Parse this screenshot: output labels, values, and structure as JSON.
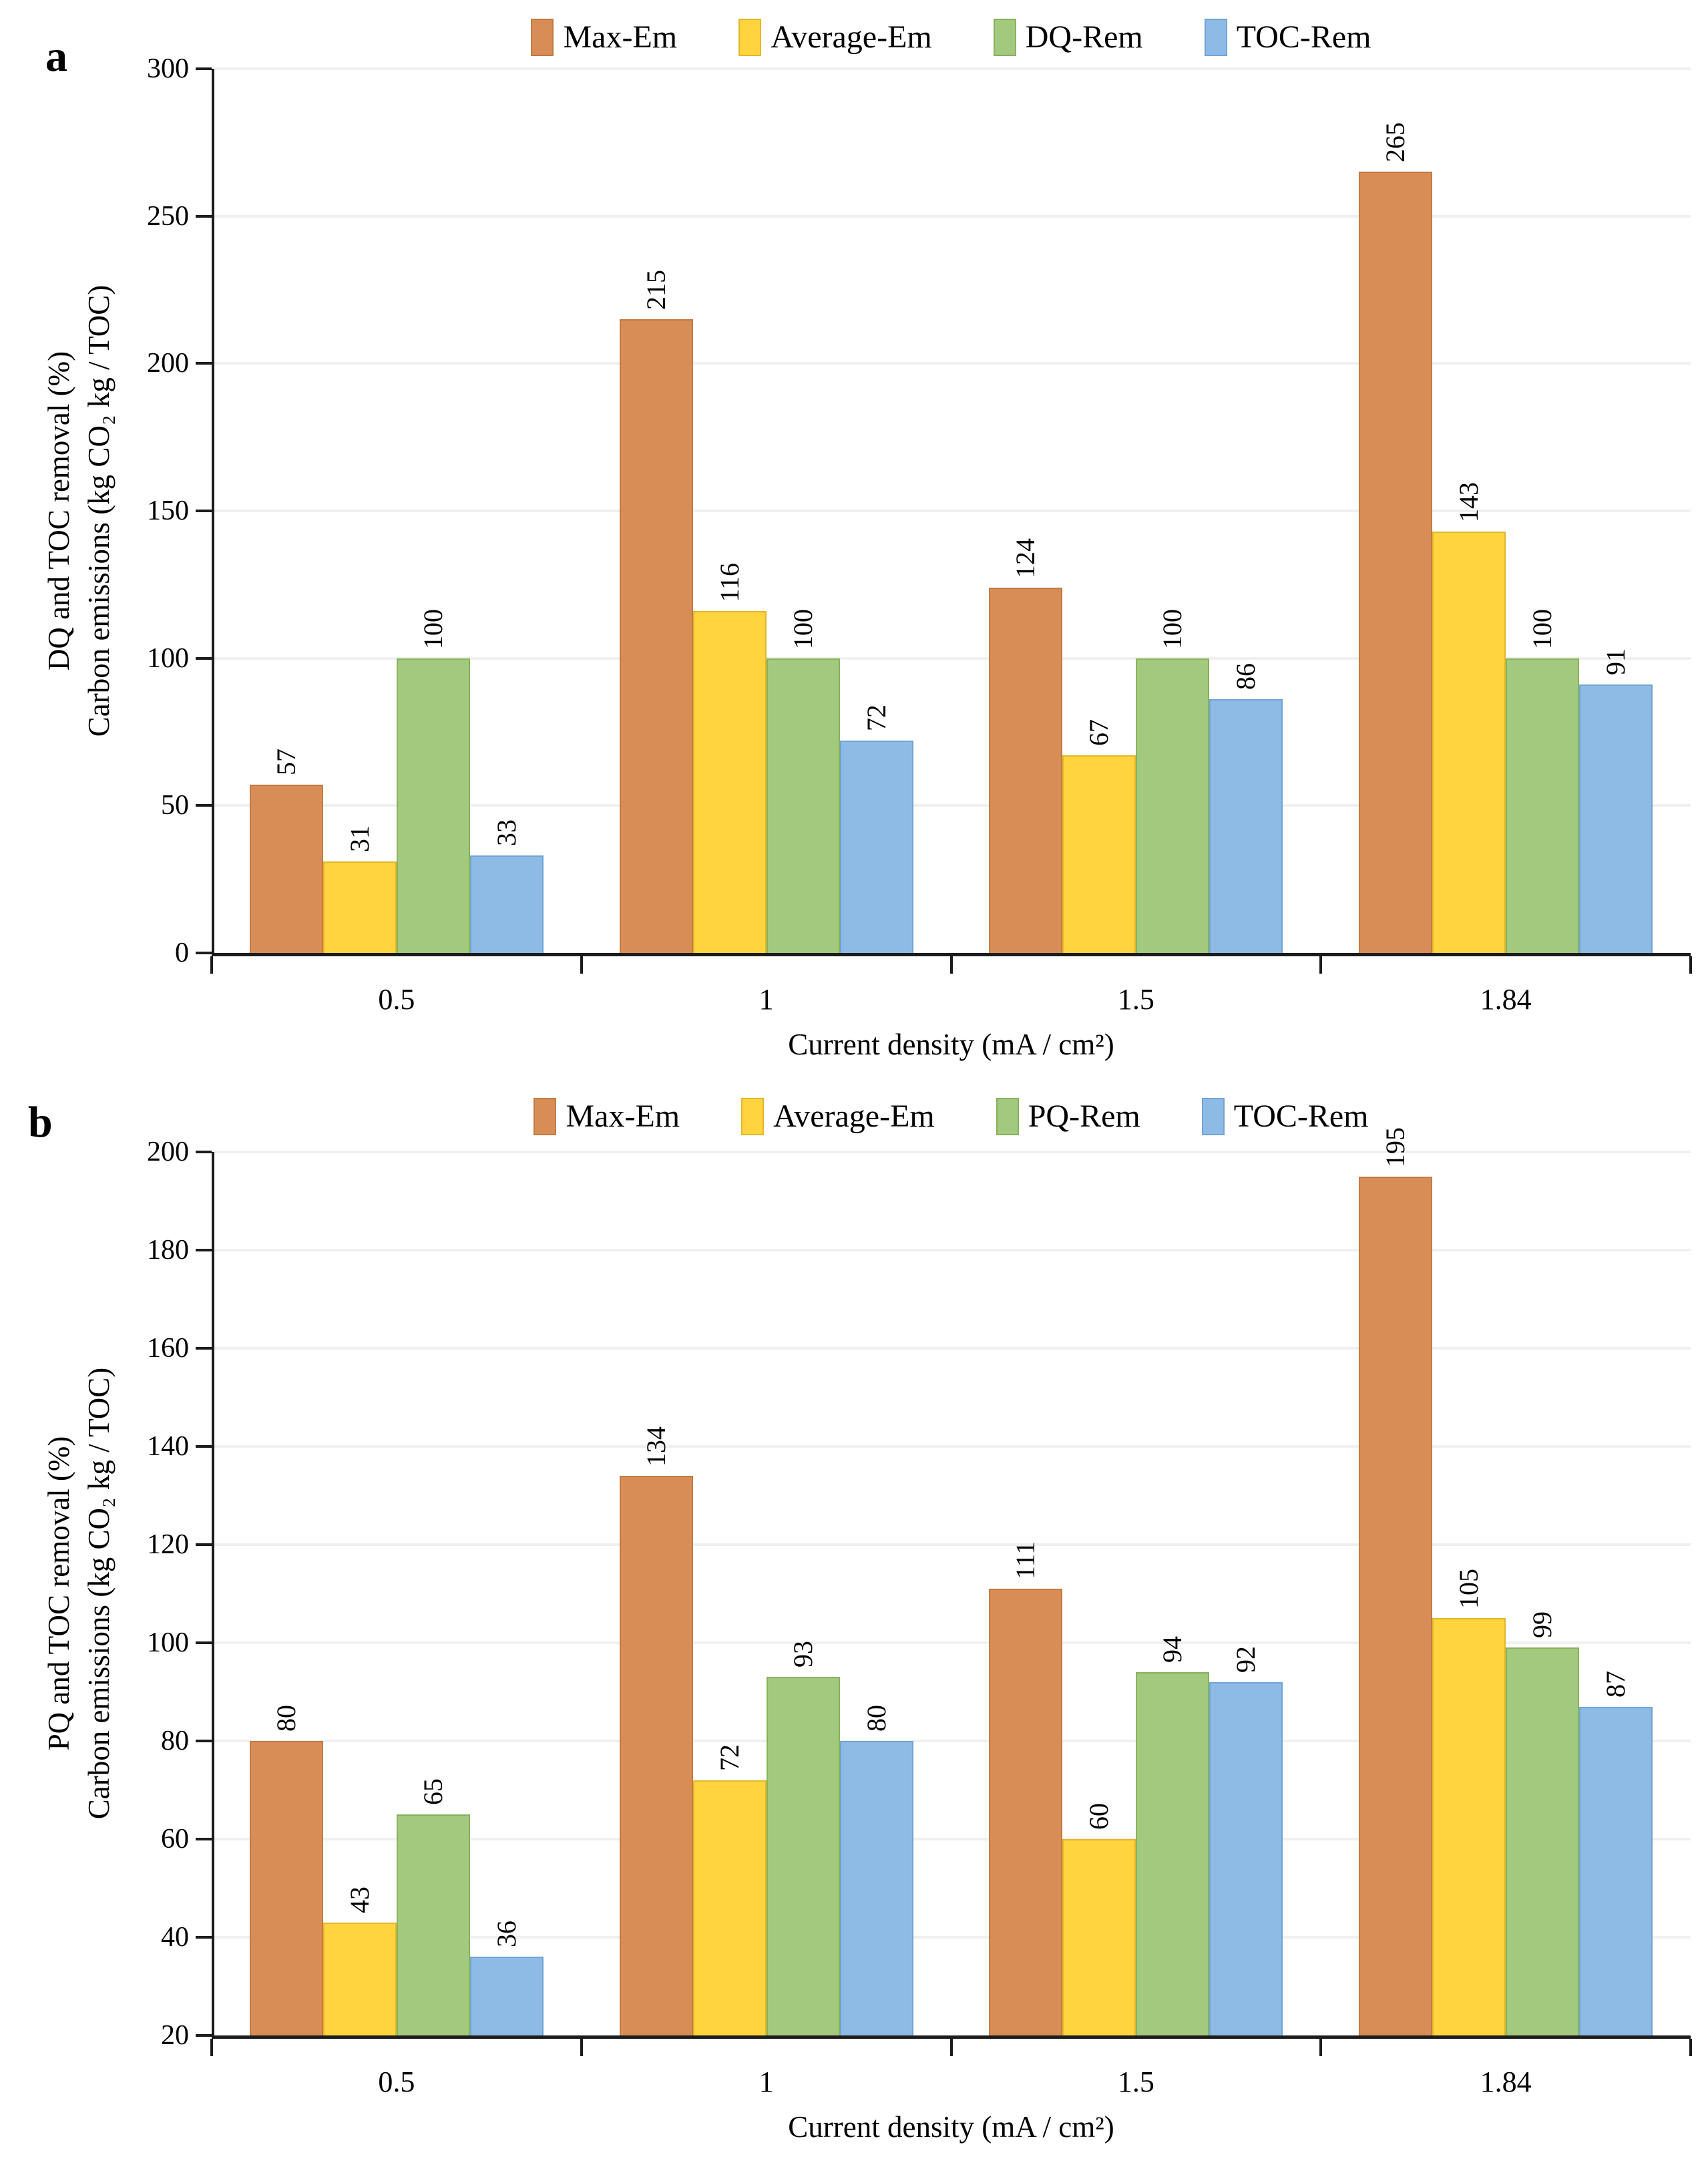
{
  "page": {
    "background": "#FFFFFF"
  },
  "chart_data": [
    {
      "type": "bar",
      "panel_label": "a",
      "categories": [
        "0.5",
        "1",
        "1.5",
        "1.84"
      ],
      "series": [
        {
          "name": "Max-Em",
          "color": "#D78D55",
          "border": "#C17A43",
          "values": [
            57,
            215,
            124,
            265
          ]
        },
        {
          "name": "Average-Em",
          "color": "#FFD43E",
          "border": "#E3B729",
          "values": [
            31,
            116,
            67,
            143
          ]
        },
        {
          "name": "DQ-Rem",
          "color": "#A2C97D",
          "border": "#86B25C",
          "values": [
            100,
            100,
            100,
            100
          ]
        },
        {
          "name": "TOC-Rem",
          "color": "#8DBBE6",
          "border": "#71A4D4",
          "values": [
            33,
            72,
            86,
            91
          ]
        }
      ],
      "value_labels": [
        [
          "57",
          "31",
          "100",
          "33"
        ],
        [
          "215",
          "116",
          "100",
          "72"
        ],
        [
          "124",
          "67",
          "100",
          "86"
        ],
        [
          "265",
          "143",
          "100",
          "91"
        ]
      ],
      "ylabel_line1": "DQ and TOC removal (%)",
      "ylabel_line2": "Carbon emissions (kg CO₂ kg / TOC)",
      "xlabel": "Current density (mA / cm²)",
      "ylim": [
        0,
        300
      ],
      "ytick_step": 50,
      "ytick_labels": [
        "300",
        "250",
        "200",
        "150",
        "100",
        "50",
        "0"
      ],
      "grid": true,
      "legend_position": "top"
    },
    {
      "type": "bar",
      "panel_label": "b",
      "categories": [
        "0.5",
        "1",
        "1.5",
        "1.84"
      ],
      "series": [
        {
          "name": "Max-Em",
          "color": "#D78D55",
          "border": "#C17A43",
          "values": [
            80,
            134,
            111,
            195
          ]
        },
        {
          "name": "Average-Em",
          "color": "#FFD43E",
          "border": "#E3B729",
          "values": [
            43,
            72,
            60,
            105
          ]
        },
        {
          "name": "PQ-Rem",
          "color": "#A2C97D",
          "border": "#86B25C",
          "values": [
            65,
            93,
            94,
            99
          ]
        },
        {
          "name": "TOC-Rem",
          "color": "#8DBBE6",
          "border": "#71A4D4",
          "values": [
            36,
            80,
            92,
            87
          ]
        }
      ],
      "value_labels": [
        [
          "80",
          "43",
          "65",
          "36"
        ],
        [
          "134",
          "72",
          "93",
          "80"
        ],
        [
          "111",
          "60",
          "94",
          "92"
        ],
        [
          "195",
          "105",
          "99",
          "87"
        ]
      ],
      "ylabel_line1": "PQ and TOC removal (%)",
      "ylabel_line2": "Carbon emissions (kg CO₂ kg / TOC)",
      "xlabel": "Current density (mA / cm²)",
      "ylim": [
        20,
        200
      ],
      "ytick_step": 20,
      "ytick_labels": [
        "200",
        "180",
        "160",
        "140",
        "120",
        "100",
        "80",
        "60",
        "40",
        "20"
      ],
      "grid": true,
      "legend_position": "top"
    }
  ]
}
